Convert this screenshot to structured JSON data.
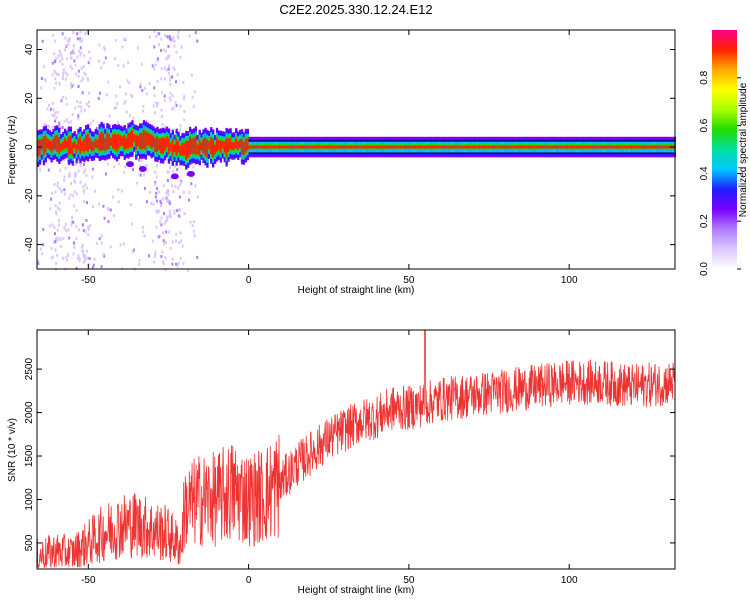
{
  "title": "C2E2.2025.330.12.24.E12",
  "colors": {
    "snr_line": "#ee3333",
    "spectrum_band": "#dd2222",
    "colormap": [
      "#ffffff",
      "#dcc8ff",
      "#b07cff",
      "#7a00ff",
      "#1e1eff",
      "#00c8ff",
      "#00e0a0",
      "#22dd00",
      "#aaff00",
      "#ffff00",
      "#ffaa00",
      "#ff2200",
      "#ff0088"
    ]
  },
  "chart_data": [
    {
      "type": "heatmap",
      "xlabel": "Height of straight line (km)",
      "ylabel": "Frequency (Hz)",
      "xlim": [
        -66,
        133
      ],
      "ylim": [
        -50,
        48
      ],
      "xticks": [
        -50,
        0,
        50,
        100
      ],
      "yticks": [
        -40,
        -20,
        0,
        20,
        40
      ],
      "colorbar": {
        "label": "Normalized spectral amplitude",
        "range": [
          0,
          1
        ],
        "ticks": [
          0.0,
          0.2,
          0.4,
          0.6,
          0.8
        ]
      },
      "ridge": {
        "x": [
          -66,
          -60,
          -55,
          -50,
          -45,
          -40,
          -35,
          -30,
          -25,
          -22,
          -18,
          -10,
          -5,
          0,
          133
        ],
        "y": [
          0,
          1,
          0,
          1,
          2,
          2,
          3,
          2,
          1,
          -1,
          0,
          0,
          1,
          0,
          0
        ]
      },
      "secondary_blobs": [
        {
          "x": -37,
          "y": -7
        },
        {
          "x": -33,
          "y": -9
        },
        {
          "x": -23,
          "y": -12
        },
        {
          "x": -18,
          "y": -11
        }
      ],
      "grid": false
    },
    {
      "type": "line",
      "xlabel": "Height of straight line (km)",
      "ylabel": "SNR (10 * v/v)",
      "xlim": [
        -66,
        133
      ],
      "ylim": [
        200,
        2950
      ],
      "xticks": [
        -50,
        0,
        50,
        100
      ],
      "yticks": [
        500,
        1000,
        1500,
        2000,
        2500
      ],
      "series_trend": {
        "x": [
          -66,
          -60,
          -55,
          -50,
          -45,
          -40,
          -35,
          -30,
          -25,
          -21,
          -20,
          -15,
          -10,
          -5,
          0,
          5,
          10,
          15,
          20,
          25,
          30,
          35,
          40,
          45,
          50,
          55,
          60,
          70,
          80,
          90,
          100,
          110,
          120,
          133
        ],
        "y": [
          350,
          400,
          380,
          500,
          620,
          700,
          720,
          650,
          600,
          450,
          900,
          1000,
          1000,
          1100,
          1000,
          1050,
          1200,
          1400,
          1550,
          1700,
          1800,
          1900,
          1950,
          2050,
          2050,
          2100,
          2150,
          2200,
          2250,
          2300,
          2350,
          2350,
          2300,
          2350
        ]
      },
      "grid": false
    }
  ]
}
